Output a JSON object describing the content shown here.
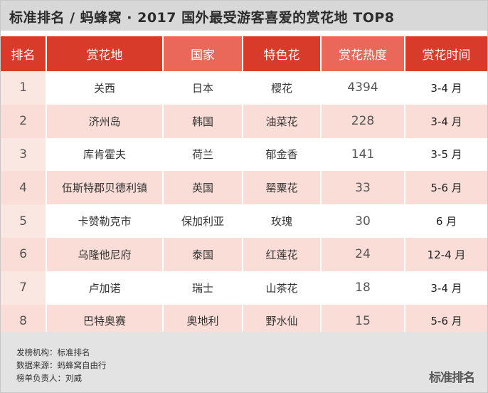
{
  "title": "标准排名 / 蚂蜂窝 · 2017 国外最受游客喜爱的赏花地 TOP8",
  "table": {
    "headers": [
      "排名",
      "赏花地",
      "国家",
      "特色花",
      "赏花热度",
      "赏花时间"
    ],
    "rows": [
      [
        "1",
        "关西",
        "日本",
        "樱花",
        "4394",
        "3-4 月"
      ],
      [
        "2",
        "济州岛",
        "韩国",
        "油菜花",
        "228",
        "3-4 月"
      ],
      [
        "3",
        "库肯霍夫",
        "荷兰",
        "郁金香",
        "141",
        "3-5 月"
      ],
      [
        "4",
        "伍斯特郡贝德利镇",
        "英国",
        "罂粟花",
        "33",
        "5-6 月"
      ],
      [
        "5",
        "卡赞勒克市",
        "保加利亚",
        "玫瑰",
        "30",
        "6 月"
      ],
      [
        "6",
        "乌隆他尼府",
        "泰国",
        "红莲花",
        "24",
        "12-4 月"
      ],
      [
        "7",
        "卢加诺",
        "瑞士",
        "山茶花",
        "18",
        "3-4 月"
      ],
      [
        "8",
        "巴特奥赛",
        "奥地利",
        "野水仙",
        "15",
        "5-6 月"
      ]
    ]
  },
  "footer": {
    "publisher": "发榜机构：标准排名",
    "source": "数据来源：蚂蜂窝自由行",
    "editor": "榜单负责人：刘威",
    "logo": "标准排名"
  },
  "colors": {
    "header_dark": "#d93b2b",
    "header_light": "#e9685a",
    "row_alt": "#f9ddd6",
    "title_bar": "#d8d8d8",
    "footer_bg": "#e3e3e3"
  }
}
